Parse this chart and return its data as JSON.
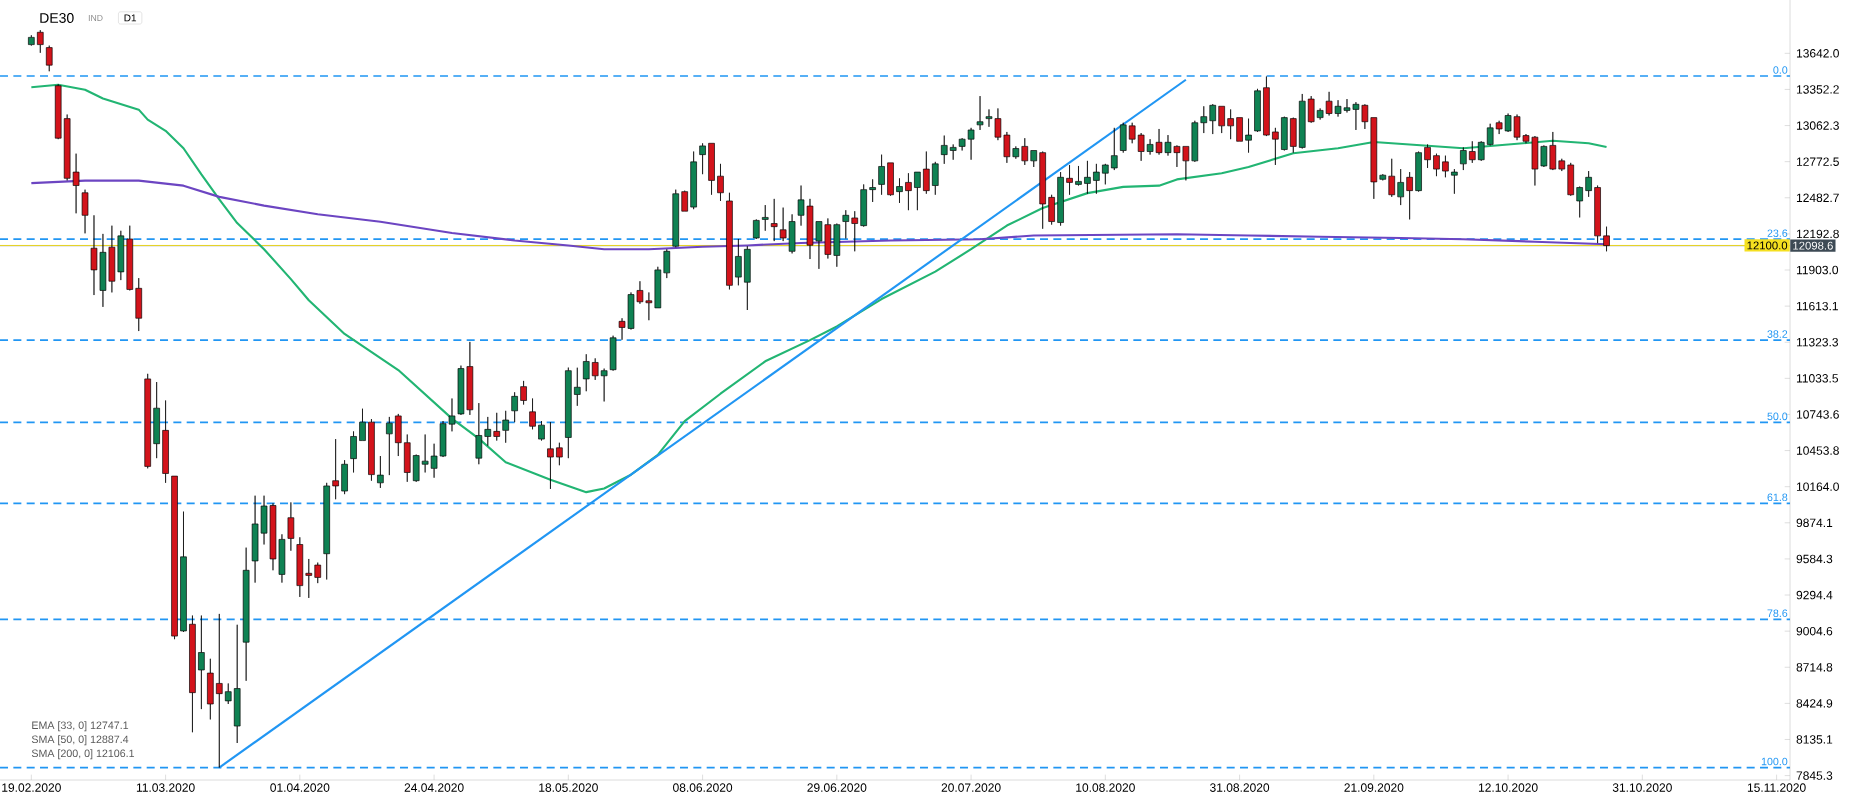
{
  "chart_data": {
    "type": "candlestick",
    "title": "DE30",
    "subtitle": "IND",
    "annotations": [
      "D1",
      "EMA [33, 0] 12747.1",
      "SMA [50, 0] 12887.4",
      "SMA [200, 0] 12106.1",
      {
        "text": "0.0",
        "y": 13460
      },
      {
        "text": "23.6",
        "y": 12150
      },
      {
        "text": "38.2",
        "y": 11340
      },
      {
        "text": "50.0",
        "y": 10680
      },
      {
        "text": "61.8",
        "y": 10030
      },
      {
        "text": "78.6",
        "y": 9100
      },
      {
        "text": "100.0",
        "y": 7910
      }
    ],
    "categories": [
      "19.02.2020",
      null,
      null,
      null,
      null,
      null,
      null,
      null,
      null,
      null,
      null,
      null,
      null,
      null,
      null,
      "11.03.2020",
      null,
      null,
      null,
      null,
      null,
      null,
      null,
      null,
      null,
      null,
      null,
      null,
      null,
      null,
      "01.04.2020",
      null,
      null,
      null,
      null,
      null,
      null,
      null,
      null,
      null,
      null,
      null,
      null,
      null,
      null,
      "24.04.2020",
      null,
      null,
      null,
      null,
      null,
      null,
      null,
      null,
      null,
      null,
      null,
      null,
      null,
      null,
      "18.05.2020",
      null,
      null,
      null,
      null,
      null,
      null,
      null,
      null,
      null,
      null,
      null,
      null,
      null,
      null,
      "08.06.2020",
      null,
      null,
      null,
      null,
      null,
      null,
      null,
      null,
      null,
      null,
      null,
      null,
      null,
      null,
      "29.06.2020",
      null,
      null,
      null,
      null,
      null,
      null,
      null,
      null,
      null,
      null,
      null,
      null,
      null,
      null,
      "20.07.2020",
      null,
      null,
      null,
      null,
      null,
      null,
      null,
      null,
      null,
      null,
      null,
      null,
      null,
      null,
      "10.08.2020",
      null,
      null,
      null,
      null,
      null,
      null,
      null,
      null,
      null,
      null,
      null,
      null,
      null,
      null,
      "31.08.2020",
      null,
      null,
      null,
      null,
      null,
      null,
      null,
      null,
      null,
      null,
      null,
      null,
      null,
      null,
      "21.09.2020",
      null,
      null,
      null,
      null,
      null,
      null,
      null,
      null,
      null,
      null,
      null,
      null,
      null,
      null,
      "12.10.2020",
      null,
      null,
      null,
      null,
      null,
      null,
      null,
      null,
      null,
      null,
      null,
      null,
      null,
      null,
      "31.10.2020",
      null,
      null,
      null,
      null,
      null,
      null,
      null,
      null,
      null,
      null,
      null,
      null,
      null,
      null,
      "15.11.2020"
    ],
    "ohlc": [
      [
        13712,
        13787,
        13704,
        13770
      ],
      [
        13811,
        13828,
        13646,
        13712
      ],
      [
        13688,
        13704,
        13498,
        13547
      ],
      [
        13382,
        13394,
        12953,
        12961
      ],
      [
        13118,
        13151,
        12622,
        12639
      ],
      [
        12689,
        12837,
        12358,
        12581
      ],
      [
        12523,
        12548,
        12197,
        12342
      ],
      [
        12078,
        12342,
        11702,
        11904
      ],
      [
        11739,
        12193,
        11607,
        12045
      ],
      [
        12086,
        12259,
        11723,
        11813
      ],
      [
        11888,
        12218,
        11822,
        12177
      ],
      [
        12152,
        12259,
        11739,
        11747
      ],
      [
        11756,
        11838,
        11413,
        11516
      ],
      [
        11029,
        11070,
        10311,
        10327
      ],
      [
        10509,
        11004,
        10393,
        10794
      ],
      [
        10616,
        10856,
        10195,
        10270
      ],
      [
        10249,
        10249,
        8940,
        8965
      ],
      [
        9006,
        9964,
        8998,
        9601
      ],
      [
        9060,
        9130,
        8193,
        8511
      ],
      [
        8693,
        9130,
        8379,
        8833
      ],
      [
        8668,
        8783,
        8296,
        8420
      ],
      [
        8585,
        9143,
        7910,
        8503
      ],
      [
        8445,
        8585,
        8420,
        8519
      ],
      [
        8243,
        9056,
        8107,
        8544
      ],
      [
        8916,
        9675,
        8606,
        9493
      ],
      [
        9568,
        10092,
        9394,
        9865
      ],
      [
        9791,
        10092,
        9700,
        10009
      ],
      [
        10013,
        10030,
        9493,
        9584
      ],
      [
        9460,
        9782,
        9394,
        9741
      ],
      [
        9915,
        10038,
        9650,
        9749
      ],
      [
        9700,
        9758,
        9279,
        9370
      ],
      [
        9469,
        9584,
        9271,
        9452
      ],
      [
        9535,
        9555,
        9390,
        9436
      ],
      [
        9626,
        10195,
        9419,
        10170
      ],
      [
        10212,
        10546,
        10063,
        10170
      ],
      [
        10129,
        10377,
        10104,
        10344
      ],
      [
        10389,
        10608,
        10278,
        10567
      ],
      [
        10534,
        10790,
        10534,
        10682
      ],
      [
        10682,
        10707,
        10212,
        10261
      ],
      [
        10195,
        10410,
        10154,
        10257
      ],
      [
        10588,
        10724,
        10257,
        10674
      ],
      [
        10732,
        10748,
        10410,
        10517
      ],
      [
        10517,
        10583,
        10203,
        10278
      ],
      [
        10212,
        10422,
        10203,
        10414
      ],
      [
        10344,
        10583,
        10278,
        10369
      ],
      [
        10311,
        10509,
        10236,
        10410
      ],
      [
        10410,
        10691,
        10402,
        10670
      ],
      [
        10666,
        10872,
        10608,
        10732
      ],
      [
        10748,
        11136,
        10740,
        11112
      ],
      [
        11128,
        11326,
        10740,
        10781
      ],
      [
        10393,
        10835,
        10344,
        10575
      ],
      [
        10567,
        10724,
        10493,
        10624
      ],
      [
        10608,
        10757,
        10534,
        10567
      ],
      [
        10616,
        10773,
        10517,
        10699
      ],
      [
        10773,
        10922,
        10682,
        10889
      ],
      [
        10967,
        11013,
        10823,
        10856
      ],
      [
        10765,
        10872,
        10624,
        10649
      ],
      [
        10546,
        10691,
        10534,
        10658
      ],
      [
        10468,
        10682,
        10146,
        10402
      ],
      [
        10476,
        10517,
        10336,
        10402
      ],
      [
        10559,
        11120,
        10393,
        11095
      ],
      [
        10904,
        11119,
        10813,
        10962
      ],
      [
        11029,
        11227,
        10930,
        11169
      ],
      [
        11161,
        11194,
        11021,
        11054
      ],
      [
        11054,
        11112,
        10848,
        11095
      ],
      [
        11103,
        11376,
        11095,
        11359
      ],
      [
        11491,
        11516,
        11343,
        11442
      ],
      [
        11434,
        11723,
        11425,
        11706
      ],
      [
        11739,
        11813,
        11632,
        11648
      ],
      [
        11656,
        11723,
        11500,
        11640
      ],
      [
        11599,
        11929,
        11599,
        11904
      ],
      [
        11880,
        12069,
        11838,
        12053
      ],
      [
        12094,
        12548,
        12086,
        12515
      ],
      [
        12532,
        12540,
        12375,
        12375
      ],
      [
        12408,
        12854,
        12391,
        12771
      ],
      [
        12829,
        12920,
        12672,
        12899
      ],
      [
        12920,
        12920,
        12507,
        12622
      ],
      [
        12656,
        12755,
        12457,
        12523
      ],
      [
        12457,
        12523,
        11747,
        11780
      ],
      [
        11846,
        12152,
        11780,
        12012
      ],
      [
        11805,
        12094,
        11582,
        12069
      ],
      [
        12160,
        12309,
        12152,
        12301
      ],
      [
        12309,
        12424,
        12218,
        12325
      ],
      [
        12276,
        12474,
        12135,
        12251
      ],
      [
        12226,
        12404,
        12135,
        12160
      ],
      [
        12053,
        12350,
        12036,
        12292
      ],
      [
        12342,
        12581,
        12259,
        12466
      ],
      [
        12416,
        12474,
        11991,
        12102
      ],
      [
        12135,
        12292,
        11912,
        12292
      ],
      [
        12267,
        12317,
        11995,
        12028
      ],
      [
        12020,
        12276,
        11929,
        12267
      ],
      [
        12292,
        12383,
        12156,
        12342
      ],
      [
        12321,
        12375,
        12053,
        12276
      ],
      [
        12259,
        12590,
        12251,
        12548
      ],
      [
        12548,
        12631,
        12449,
        12565
      ],
      [
        12590,
        12829,
        12507,
        12734
      ],
      [
        12763,
        12763,
        12499,
        12507
      ],
      [
        12532,
        12639,
        12441,
        12573
      ],
      [
        12606,
        12680,
        12383,
        12540
      ],
      [
        12565,
        12689,
        12383,
        12689
      ],
      [
        12713,
        12854,
        12515,
        12540
      ],
      [
        12581,
        12771,
        12507,
        12755
      ],
      [
        12829,
        12982,
        12755,
        12903
      ],
      [
        12862,
        12911,
        12788,
        12887
      ],
      [
        12895,
        12961,
        12862,
        12953
      ],
      [
        12953,
        13044,
        12788,
        13027
      ],
      [
        13068,
        13299,
        13027,
        13093
      ],
      [
        13118,
        13192,
        13052,
        13134
      ],
      [
        13118,
        13200,
        12945,
        12969
      ],
      [
        12986,
        13011,
        12763,
        12812
      ],
      [
        12812,
        12895,
        12796,
        12878
      ],
      [
        12895,
        12961,
        12746,
        12779
      ],
      [
        12779,
        12862,
        12730,
        12862
      ],
      [
        12845,
        12854,
        12234,
        12433
      ],
      [
        12486,
        12507,
        12267,
        12292
      ],
      [
        12284,
        12689,
        12259,
        12647
      ],
      [
        12639,
        12746,
        12507,
        12606
      ],
      [
        12590,
        12738,
        12581,
        12614
      ],
      [
        12598,
        12779,
        12515,
        12647
      ],
      [
        12622,
        12755,
        12515,
        12689
      ],
      [
        12680,
        12755,
        12590,
        12746
      ],
      [
        12722,
        13044,
        12705,
        12821
      ],
      [
        12862,
        13085,
        12845,
        13068
      ],
      [
        13060,
        13085,
        12920,
        12953
      ],
      [
        12986,
        13002,
        12779,
        12854
      ],
      [
        12854,
        12953,
        12829,
        12911
      ],
      [
        12928,
        13035,
        12829,
        12845
      ],
      [
        12845,
        12986,
        12821,
        12928
      ],
      [
        12895,
        12903,
        12730,
        12845
      ],
      [
        12895,
        12895,
        12622,
        12779
      ],
      [
        12779,
        13101,
        12771,
        13085
      ],
      [
        13085,
        13217,
        13002,
        13134
      ],
      [
        13101,
        13234,
        12994,
        13225
      ],
      [
        13217,
        13217,
        13002,
        13060
      ],
      [
        13118,
        13192,
        12953,
        13060
      ],
      [
        13126,
        13126,
        12936,
        12936
      ],
      [
        12945,
        13118,
        12845,
        12986
      ],
      [
        13019,
        13357,
        13011,
        13341
      ],
      [
        13366,
        13456,
        12978,
        12986
      ],
      [
        13011,
        13044,
        12746,
        12953
      ],
      [
        12870,
        13134,
        12862,
        13126
      ],
      [
        13118,
        13126,
        12845,
        12895
      ],
      [
        12887,
        13316,
        12878,
        13258
      ],
      [
        13275,
        13299,
        13085,
        13093
      ],
      [
        13126,
        13200,
        13110,
        13184
      ],
      [
        13258,
        13333,
        13143,
        13159
      ],
      [
        13159,
        13266,
        13134,
        13217
      ],
      [
        13184,
        13275,
        13167,
        13205
      ],
      [
        13192,
        13250,
        13027,
        13233
      ],
      [
        13225,
        13233,
        13035,
        13093
      ],
      [
        13126,
        13126,
        12474,
        12610
      ],
      [
        12631,
        12672,
        12622,
        12664
      ],
      [
        12656,
        12796,
        12490,
        12507
      ],
      [
        12490,
        12713,
        12424,
        12606
      ],
      [
        12647,
        12689,
        12309,
        12540
      ],
      [
        12540,
        12854,
        12532,
        12845
      ],
      [
        12887,
        12911,
        12722,
        12788
      ],
      [
        12821,
        12837,
        12656,
        12713
      ],
      [
        12771,
        12821,
        12647,
        12697
      ],
      [
        12664,
        12713,
        12515,
        12689
      ],
      [
        12755,
        12887,
        12705,
        12862
      ],
      [
        12854,
        12936,
        12763,
        12788
      ],
      [
        12788,
        12936,
        12779,
        12928
      ],
      [
        12911,
        13077,
        12903,
        13044
      ],
      [
        13085,
        13101,
        12994,
        13035
      ],
      [
        13019,
        13159,
        13011,
        13143
      ],
      [
        13134,
        13151,
        12945,
        12969
      ],
      [
        12982,
        12994,
        12920,
        12936
      ],
      [
        12969,
        12978,
        12581,
        12713
      ],
      [
        12738,
        12903,
        12730,
        12895
      ],
      [
        12903,
        13011,
        12705,
        12713
      ],
      [
        12779,
        12796,
        12697,
        12713
      ],
      [
        12746,
        12763,
        12499,
        12507
      ],
      [
        12457,
        12573,
        12325,
        12565
      ],
      [
        12540,
        12697,
        12490,
        12647
      ],
      [
        12565,
        12581,
        12119,
        12177
      ],
      [
        12177,
        12251,
        12053,
        12098.6
      ],
      null,
      null,
      null,
      null,
      null,
      null,
      null,
      null,
      null,
      null,
      null,
      null,
      null,
      null,
      null,
      null,
      null,
      null,
      null
    ],
    "series": [
      {
        "type": "line",
        "color": "#22b573",
        "values": [
          13370,
          null,
          null,
          13390,
          null,
          null,
          13350,
          null,
          13280,
          null,
          null,
          null,
          13190,
          13110,
          null,
          13020,
          null,
          12880,
          null,
          12670,
          null,
          12470,
          null,
          12280,
          null,
          null,
          12070,
          null,
          null,
          11830,
          null,
          11660,
          null,
          null,
          null,
          11390,
          null,
          null,
          null,
          null,
          null,
          11100,
          null,
          null,
          null,
          null,
          null,
          10710,
          null,
          null,
          10550,
          null,
          null,
          10360,
          null,
          null,
          null,
          null,
          10220,
          null,
          null,
          null,
          10120,
          null,
          10150,
          null,
          null,
          10260,
          null,
          null,
          10420,
          null,
          null,
          10690,
          null,
          null,
          null,
          10910,
          null,
          null,
          null,
          null,
          11170,
          null,
          null,
          null,
          null,
          11340,
          null,
          null,
          11450,
          null,
          null,
          null,
          null,
          11670,
          null,
          null,
          null,
          null,
          null,
          11890,
          null,
          null,
          null,
          12070,
          null,
          null,
          null,
          12260,
          null,
          null,
          null,
          12400,
          null,
          null,
          null,
          null,
          12520,
          null,
          null,
          null,
          12570,
          null,
          null,
          null,
          12580,
          null,
          12630,
          null,
          null,
          null,
          null,
          12680,
          null,
          null,
          12730,
          null,
          null,
          null,
          null,
          12840,
          null,
          null,
          null,
          null,
          12880,
          null,
          null,
          null,
          12930,
          null,
          null,
          null,
          null,
          null,
          12900,
          null,
          null,
          null,
          12880,
          null,
          null,
          null,
          null,
          12910,
          null,
          null,
          null,
          null,
          12940,
          null,
          null,
          null,
          12920,
          null,
          12890,
          null,
          null,
          null,
          null,
          null,
          null,
          null,
          null,
          null,
          null,
          null,
          null,
          null,
          null,
          null,
          null,
          null,
          null,
          null
        ]
      },
      {
        "type": "line",
        "color": "#6c45c2",
        "values": [
          12600,
          null,
          null,
          null,
          null,
          null,
          12620,
          null,
          null,
          null,
          null,
          null,
          12620,
          null,
          null,
          null,
          null,
          12580,
          null,
          null,
          null,
          12490,
          null,
          null,
          null,
          null,
          12420,
          null,
          null,
          null,
          null,
          null,
          12350,
          null,
          null,
          null,
          null,
          null,
          null,
          12290,
          null,
          null,
          null,
          null,
          null,
          null,
          null,
          12200,
          null,
          null,
          null,
          null,
          null,
          null,
          12140,
          null,
          null,
          null,
          null,
          null,
          12100,
          null,
          null,
          null,
          12070,
          null,
          null,
          null,
          null,
          12070,
          null,
          null,
          null,
          null,
          null,
          12090,
          null,
          null,
          null,
          null,
          12100,
          null,
          null,
          null,
          null,
          null,
          12120,
          null,
          null,
          null,
          null,
          null,
          null,
          null,
          null,
          null,
          12140,
          null,
          null,
          null,
          null,
          null,
          null,
          null,
          null,
          null,
          12150,
          null,
          null,
          null,
          null,
          null,
          12180,
          null,
          null,
          null,
          null,
          null,
          null,
          null,
          null,
          null,
          null,
          null,
          null,
          null,
          null,
          null,
          12190,
          null,
          null,
          null,
          null,
          null,
          null,
          null,
          12180,
          null,
          null,
          null,
          null,
          null,
          null,
          null,
          12170,
          null,
          null,
          null,
          null,
          null,
          null,
          null,
          null,
          12160,
          null,
          null,
          null,
          null,
          null,
          null,
          12150,
          null,
          null,
          null,
          null,
          null,
          null,
          null,
          12130,
          null,
          null,
          null,
          null,
          null,
          null,
          null,
          12110,
          null,
          null,
          null,
          null,
          null,
          null,
          null,
          null,
          null,
          null,
          null,
          null,
          null,
          null,
          null,
          null,
          null,
          null,
          null
        ]
      },
      {
        "type": "line",
        "color": "#2196f3",
        "values": [
          null,
          null,
          null,
          null,
          null,
          null,
          null,
          null,
          null,
          null,
          null,
          null,
          null,
          null,
          null,
          null,
          null,
          null,
          null,
          null,
          null,
          7910,
          null,
          null,
          null,
          null,
          null,
          null,
          null,
          null,
          null,
          null,
          null,
          null,
          null,
          null,
          null,
          null,
          null,
          null,
          null,
          null,
          null,
          null,
          null,
          null,
          null,
          null,
          null,
          null,
          null,
          null,
          null,
          null,
          null,
          null,
          null,
          null,
          null,
          null,
          null,
          null,
          null,
          null,
          null,
          null,
          null,
          null,
          null,
          null,
          null,
          null,
          null,
          null,
          null,
          null,
          null,
          null,
          null,
          null,
          null,
          null,
          null,
          null,
          null,
          null,
          null,
          null,
          null,
          null,
          null,
          null,
          null,
          null,
          null,
          null,
          null,
          null,
          null,
          null,
          null,
          null,
          null,
          null,
          null,
          null,
          null,
          null,
          null,
          null,
          null,
          null,
          null,
          null,
          null,
          null,
          null,
          null,
          null,
          null,
          null,
          null,
          null,
          null,
          null,
          null,
          null,
          null,
          null,
          13430,
          null,
          null,
          null,
          null,
          null,
          null,
          null,
          null,
          null,
          null,
          null,
          null,
          null,
          null,
          null,
          null,
          null,
          null,
          null,
          null,
          null,
          null,
          null,
          null,
          null,
          null,
          null,
          null,
          null,
          null,
          null,
          null,
          null,
          null,
          null,
          null,
          null,
          null,
          null,
          null,
          null,
          null,
          null,
          null,
          null,
          null,
          null,
          null,
          null,
          null,
          null,
          null,
          null,
          null,
          null,
          null,
          null,
          null,
          null,
          null,
          null,
          null,
          null,
          null,
          null,
          null
        ]
      }
    ],
    "ref_lines": [
      {
        "axis": "y",
        "value": 13460,
        "color": "#2196f3",
        "line_style": "dashed"
      },
      {
        "axis": "y",
        "value": 12150,
        "color": "#2196f3",
        "line_style": "dashed"
      },
      {
        "axis": "y",
        "value": 11340,
        "color": "#2196f3",
        "line_style": "dashed"
      },
      {
        "axis": "y",
        "value": 10680,
        "color": "#2196f3",
        "line_style": "dashed"
      },
      {
        "axis": "y",
        "value": 10030,
        "color": "#2196f3",
        "line_style": "dashed"
      },
      {
        "axis": "y",
        "value": 9100,
        "color": "#2196f3",
        "line_style": "dashed"
      },
      {
        "axis": "y",
        "value": 7910,
        "color": "#2196f3",
        "line_style": "dashed"
      },
      {
        "axis": "y",
        "value": 12098.6,
        "label": "12098.6",
        "color": "#3d4a55",
        "line_style": "solid"
      },
      {
        "axis": "y",
        "value": 12100,
        "label": "12100.0",
        "color": "#f5e020",
        "line_style": "solid"
      }
    ],
    "ylim": [
      7810,
      14070
    ],
    "yticks": [
      {
        "value": 13642,
        "label": "13642.0"
      },
      {
        "value": 13352.2,
        "label": "13352.2"
      },
      {
        "value": 13062.3,
        "label": "13062.3"
      },
      {
        "value": 12772.5,
        "label": "12772.5"
      },
      {
        "value": 12482.7,
        "label": "12482.7"
      },
      {
        "value": 12192.8,
        "label": "12192.8"
      },
      {
        "value": 11903,
        "label": "11903.0"
      },
      {
        "value": 11613.1,
        "label": "11613.1"
      },
      {
        "value": 11323.3,
        "label": "11323.3"
      },
      {
        "value": 11033.5,
        "label": "11033.5"
      },
      {
        "value": 10743.6,
        "label": "10743.6"
      },
      {
        "value": 10453.8,
        "label": "10453.8"
      },
      {
        "value": 10164,
        "label": "10164.0"
      },
      {
        "value": 9874.1,
        "label": "9874.1"
      },
      {
        "value": 9584.3,
        "label": "9584.3"
      },
      {
        "value": 9294.4,
        "label": "9294.4"
      },
      {
        "value": 9004.6,
        "label": "9004.6"
      },
      {
        "value": 8714.8,
        "label": "8714.8"
      },
      {
        "value": 8424.9,
        "label": "8424.9"
      },
      {
        "value": 8135.1,
        "label": "8135.1"
      },
      {
        "value": 7845.3,
        "label": "7845.3"
      }
    ]
  }
}
